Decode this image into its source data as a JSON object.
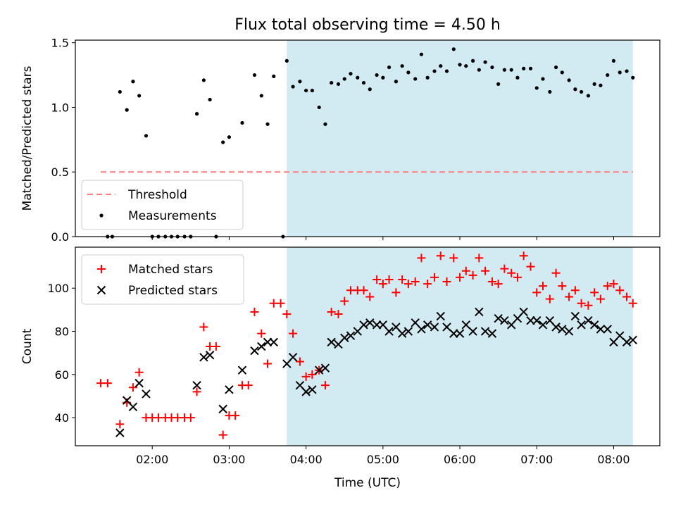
{
  "chart_data": {
    "title": "Flux total observing time = 4.50 h",
    "x_tick_labels": [
      "02:00",
      "03:00",
      "04:00",
      "05:00",
      "06:00",
      "07:00",
      "08:00"
    ],
    "x_ticks_hours": [
      2,
      3,
      4,
      5,
      6,
      7,
      8
    ],
    "x_range_hours": [
      1.0,
      8.6
    ],
    "xlabel": "Time (UTC)",
    "shaded_interval_hours": [
      3.75,
      8.25
    ],
    "colors": {
      "shade": "#add8e6",
      "threshold": "#ff7f7f",
      "measurements": "#000000",
      "matched": "#ff0000",
      "predicted": "#000000"
    },
    "panels": [
      {
        "type": "scatter",
        "ylabel": "Matched/Predicted stars",
        "ylim": [
          0,
          1.52
        ],
        "yticks": [
          0,
          0.5,
          1.0,
          1.5
        ],
        "ytick_labels": [
          "0.0",
          "0.5",
          "1.0",
          "1.5"
        ],
        "legend_position": "lower-left",
        "threshold": {
          "name": "Threshold",
          "value": 0.5,
          "x_range_hours": [
            1.33,
            8.25
          ]
        },
        "series": [
          {
            "name": "Measurements",
            "marker": "dot",
            "x": [
              1.42,
              1.48,
              1.58,
              1.67,
              1.75,
              1.83,
              1.92,
              2.0,
              2.08,
              2.17,
              2.25,
              2.33,
              2.42,
              2.5,
              2.58,
              2.67,
              2.75,
              2.83,
              2.92,
              3.0,
              3.17,
              3.33,
              3.42,
              3.5,
              3.58,
              3.7,
              3.75,
              3.83,
              3.92,
              4.0,
              4.08,
              4.17,
              4.25,
              4.33,
              4.42,
              4.5,
              4.58,
              4.67,
              4.75,
              4.83,
              4.92,
              5.0,
              5.08,
              5.17,
              5.25,
              5.33,
              5.42,
              5.5,
              5.58,
              5.67,
              5.75,
              5.83,
              5.92,
              6.0,
              6.08,
              6.17,
              6.25,
              6.33,
              6.42,
              6.5,
              6.58,
              6.67,
              6.75,
              6.83,
              6.92,
              7.0,
              7.08,
              7.17,
              7.25,
              7.33,
              7.42,
              7.5,
              7.58,
              7.67,
              7.75,
              7.83,
              7.92,
              8.0,
              8.08,
              8.17,
              8.25
            ],
            "y": [
              0.0,
              0.0,
              1.12,
              0.98,
              1.2,
              1.09,
              0.78,
              0.0,
              0.0,
              0.0,
              0.0,
              0.0,
              0.0,
              0.0,
              0.95,
              1.21,
              1.06,
              0.0,
              0.73,
              0.77,
              0.88,
              1.25,
              1.09,
              0.87,
              1.24,
              0.0,
              1.36,
              1.16,
              1.2,
              1.13,
              1.13,
              1.0,
              0.87,
              1.19,
              1.18,
              1.22,
              1.26,
              1.23,
              1.19,
              1.14,
              1.25,
              1.23,
              1.31,
              1.2,
              1.32,
              1.27,
              1.22,
              1.41,
              1.23,
              1.28,
              1.32,
              1.28,
              1.45,
              1.33,
              1.32,
              1.36,
              1.29,
              1.35,
              1.31,
              1.18,
              1.29,
              1.29,
              1.23,
              1.3,
              1.3,
              1.15,
              1.22,
              1.12,
              1.31,
              1.27,
              1.21,
              1.14,
              1.12,
              1.09,
              1.18,
              1.17,
              1.25,
              1.36,
              1.27,
              1.28,
              1.23
            ]
          }
        ]
      },
      {
        "type": "scatter",
        "ylabel": "Count",
        "ylim": [
          27,
          119
        ],
        "yticks": [
          40,
          60,
          80,
          100
        ],
        "ytick_labels": [
          "40",
          "60",
          "80",
          "100"
        ],
        "legend_position": "upper-left",
        "series": [
          {
            "name": "Matched stars",
            "marker": "plus",
            "x": [
              1.33,
              1.42,
              1.58,
              1.67,
              1.75,
              1.83,
              1.92,
              2.0,
              2.08,
              2.17,
              2.25,
              2.33,
              2.42,
              2.5,
              2.58,
              2.67,
              2.75,
              2.83,
              2.92,
              3.0,
              3.08,
              3.17,
              3.25,
              3.33,
              3.42,
              3.5,
              3.58,
              3.67,
              3.75,
              3.83,
              3.92,
              4.0,
              4.08,
              4.17,
              4.25,
              4.33,
              4.42,
              4.5,
              4.58,
              4.67,
              4.75,
              4.83,
              4.92,
              5.0,
              5.08,
              5.17,
              5.25,
              5.33,
              5.42,
              5.5,
              5.58,
              5.67,
              5.75,
              5.83,
              5.92,
              6.0,
              6.08,
              6.17,
              6.25,
              6.33,
              6.42,
              6.5,
              6.58,
              6.67,
              6.75,
              6.83,
              6.92,
              7.0,
              7.08,
              7.17,
              7.25,
              7.33,
              7.42,
              7.5,
              7.58,
              7.67,
              7.75,
              7.83,
              7.92,
              8.0,
              8.08,
              8.17,
              8.25
            ],
            "y": [
              56,
              56,
              37,
              47,
              54,
              61,
              40,
              40,
              40,
              40,
              40,
              40,
              40,
              40,
              52,
              82,
              73,
              73,
              32,
              41,
              41,
              55,
              55,
              89,
              79,
              65,
              93,
              93,
              88,
              79,
              66,
              59,
              60,
              62,
              55,
              89,
              88,
              94,
              99,
              99,
              99,
              96,
              104,
              102,
              104,
              98,
              104,
              102,
              103,
              114,
              102,
              105,
              115,
              103,
              114,
              105,
              108,
              106,
              114,
              108,
              103,
              102,
              109,
              107,
              105,
              115,
              110,
              98,
              101,
              95,
              107,
              101,
              96,
              99,
              93,
              92,
              98,
              95,
              101,
              102,
              99,
              96,
              93
            ]
          },
          {
            "name": "Predicted stars",
            "marker": "x",
            "x": [
              1.58,
              1.67,
              1.75,
              1.83,
              1.92,
              2.58,
              2.67,
              2.75,
              2.92,
              3.0,
              3.17,
              3.33,
              3.42,
              3.5,
              3.58,
              3.75,
              3.83,
              3.92,
              4.0,
              4.08,
              4.17,
              4.25,
              4.33,
              4.42,
              4.5,
              4.58,
              4.67,
              4.75,
              4.83,
              4.92,
              5.0,
              5.08,
              5.17,
              5.25,
              5.33,
              5.42,
              5.5,
              5.58,
              5.67,
              5.75,
              5.83,
              5.92,
              6.0,
              6.08,
              6.17,
              6.25,
              6.33,
              6.42,
              6.5,
              6.58,
              6.67,
              6.75,
              6.83,
              6.92,
              7.0,
              7.08,
              7.17,
              7.25,
              7.33,
              7.42,
              7.5,
              7.58,
              7.67,
              7.75,
              7.83,
              7.92,
              8.0,
              8.08,
              8.17,
              8.25
            ],
            "y": [
              33,
              48,
              45,
              56,
              51,
              55,
              68,
              69,
              44,
              53,
              62,
              71,
              73,
              75,
              75,
              65,
              68,
              55,
              52,
              53,
              62,
              63,
              75,
              74,
              77,
              78,
              80,
              83,
              84,
              83,
              83,
              80,
              82,
              79,
              80,
              84,
              81,
              83,
              82,
              87,
              82,
              79,
              79,
              83,
              80,
              89,
              80,
              79,
              86,
              85,
              83,
              86,
              89,
              85,
              85,
              83,
              85,
              82,
              81,
              80,
              87,
              83,
              85,
              83,
              81,
              81,
              75,
              78,
              75,
              76
            ]
          }
        ]
      }
    ]
  }
}
